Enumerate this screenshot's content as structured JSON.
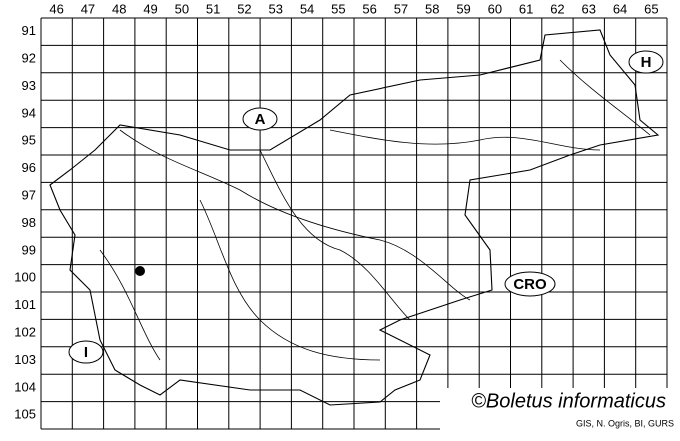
{
  "grid": {
    "columns": [
      "46",
      "47",
      "48",
      "49",
      "50",
      "51",
      "52",
      "53",
      "54",
      "55",
      "56",
      "57",
      "58",
      "59",
      "60",
      "61",
      "62",
      "63",
      "64",
      "65"
    ],
    "rows": [
      "91",
      "92",
      "93",
      "94",
      "95",
      "96",
      "97",
      "98",
      "99",
      "100",
      "101",
      "102",
      "103",
      "104",
      "105"
    ]
  },
  "neighbours": {
    "austria": "A",
    "hungary": "H",
    "italy": "I",
    "croatia": "CRO"
  },
  "credit": "©Boletus informaticus",
  "source": "GIS, N. Ogris, BI, GURS"
}
